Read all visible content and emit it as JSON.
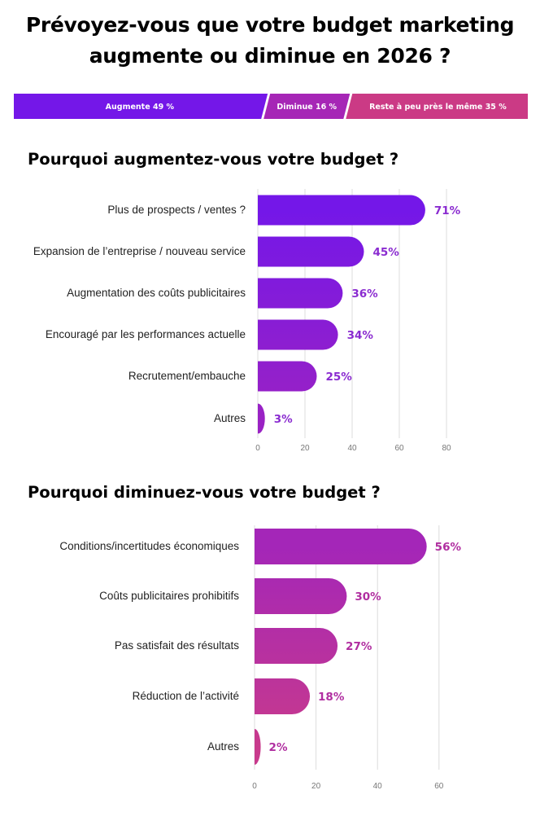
{
  "title_line1": "Prévoyez-vous que votre budget marketing",
  "title_line2": "augmente ou diminue en 2026 ?",
  "summary_bar": {
    "segments": [
      {
        "label": "Augmente 49 %",
        "value": 49,
        "color": "#7417e8"
      },
      {
        "label": "Diminue 16 %",
        "value": 16,
        "color": "#a626b6"
      },
      {
        "label": "Reste à peu près le même 35 %",
        "value": 35,
        "color": "#cb3a85"
      }
    ]
  },
  "chart_data": [
    {
      "type": "bar",
      "orientation": "horizontal",
      "title": "Pourquoi augmentez-vous votre budget ?",
      "categories": [
        "Plus de prospects / ventes ?",
        "Expansion de l’entreprise / nouveau service",
        "Augmentation des coûts publicitaires",
        "Encouragé par les performances actuelle",
        "Recrutement/embauche",
        "Autres"
      ],
      "values": [
        71,
        45,
        36,
        34,
        25,
        3
      ],
      "data_labels": [
        "71%",
        "45%",
        "36%",
        "34%",
        "25%",
        "3%"
      ],
      "xlim": [
        0,
        80
      ],
      "xticks": [
        "0",
        "20",
        "40",
        "60",
        "80"
      ],
      "grid": true,
      "colors": [
        "#7417e8",
        "#9a22c4"
      ],
      "label_color": "#8a2bd0"
    },
    {
      "type": "bar",
      "orientation": "horizontal",
      "title": "Pourquoi diminuez-vous votre budget ?",
      "categories": [
        "Conditions/incertitudes économiques",
        "Coûts publicitaires prohibitifs",
        "Pas satisfait des résultats",
        "Réduction de l’activité",
        "Autres"
      ],
      "values": [
        56,
        30,
        27,
        18,
        2
      ],
      "data_labels": [
        "56%",
        "30%",
        "27%",
        "18%",
        "2%"
      ],
      "xlim": [
        0,
        60
      ],
      "xticks": [
        "0",
        "20",
        "40",
        "60"
      ],
      "grid": true,
      "colors": [
        "#a426b8",
        "#c83a8c"
      ],
      "label_color": "#b02ea0"
    }
  ]
}
